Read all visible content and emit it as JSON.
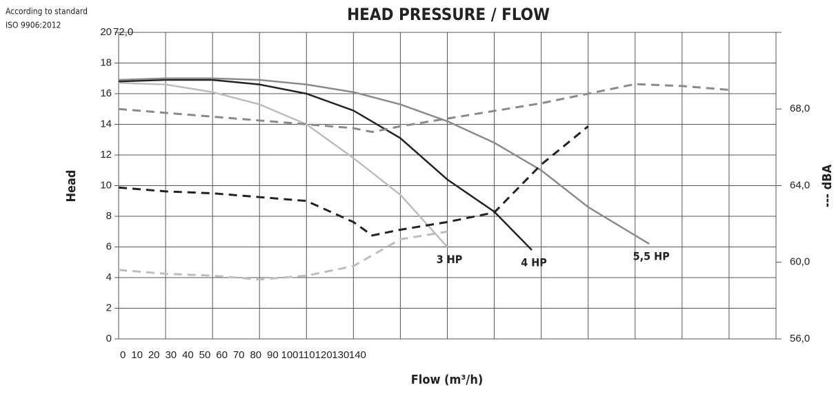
{
  "chart_data": {
    "type": "line",
    "title": "HEAD PRESSURE / FLOW",
    "annotations": [
      "According to standard",
      "ISO 9906:2012"
    ],
    "xlabel": "Flow (m³/h)",
    "ylabel": "Head",
    "y2label": "--- dBA",
    "xlim": [
      0,
      140
    ],
    "xticks": [
      0,
      10,
      20,
      30,
      40,
      50,
      60,
      70,
      80,
      90,
      100,
      110,
      120,
      130,
      140
    ],
    "ylim": [
      0,
      20
    ],
    "yticks": [
      0,
      2,
      4,
      6,
      8,
      10,
      12,
      14,
      16,
      18,
      20
    ],
    "y2lim": [
      56,
      72
    ],
    "y2ticks": [
      {
        "value": 56,
        "label": "56,0"
      },
      {
        "value": 60,
        "label": "60,0"
      },
      {
        "value": 64,
        "label": "64,0"
      },
      {
        "value": 68,
        "label": "68,0"
      },
      {
        "value": 72,
        "label": "72,0"
      }
    ],
    "grid": true,
    "series": [
      {
        "name": "3 HP",
        "color": "#bdbdbd",
        "x": [
          0,
          10,
          20,
          30,
          40,
          50,
          60,
          70
        ],
        "values": [
          16.7,
          16.6,
          16.1,
          15.3,
          14.0,
          11.8,
          9.4,
          6.0
        ]
      },
      {
        "name": "4 HP",
        "color": "#222222",
        "x": [
          0,
          10,
          20,
          30,
          40,
          50,
          60,
          70,
          80,
          88
        ],
        "values": [
          16.8,
          16.9,
          16.9,
          16.6,
          16.0,
          14.9,
          13.1,
          10.4,
          8.3,
          5.8
        ]
      },
      {
        "name": "5,5 HP",
        "color": "#8a8a8a",
        "x": [
          0,
          10,
          20,
          30,
          40,
          50,
          60,
          70,
          80,
          90,
          100,
          113
        ],
        "values": [
          16.9,
          17.0,
          17.0,
          16.9,
          16.6,
          16.1,
          15.3,
          14.2,
          12.8,
          11.0,
          8.6,
          6.2
        ]
      },
      {
        "color": "#bdbdbd",
        "axis": "y2",
        "dashed": true,
        "x": [
          0,
          10,
          20,
          25,
          30,
          40,
          50,
          60,
          70
        ],
        "values": [
          59.6,
          59.4,
          59.3,
          59.2,
          59.1,
          59.3,
          59.8,
          61.2,
          61.6
        ]
      },
      {
        "color": "#222222",
        "axis": "y2",
        "dashed": true,
        "x": [
          0,
          10,
          20,
          30,
          40,
          50,
          54,
          60,
          70,
          80,
          90,
          100
        ],
        "values": [
          63.9,
          63.7,
          63.6,
          63.4,
          63.2,
          62.1,
          61.4,
          61.7,
          62.1,
          62.6,
          65.1,
          67.1
        ]
      },
      {
        "color": "#8a8a8a",
        "axis": "y2",
        "dashed": true,
        "x": [
          0,
          10,
          20,
          30,
          40,
          50,
          54,
          60,
          70,
          80,
          90,
          100,
          110,
          120,
          130
        ],
        "values": [
          68.0,
          67.8,
          67.6,
          67.4,
          67.2,
          67.0,
          66.8,
          67.1,
          67.5,
          67.9,
          68.3,
          68.8,
          69.3,
          69.2,
          69.0
        ]
      }
    ]
  }
}
